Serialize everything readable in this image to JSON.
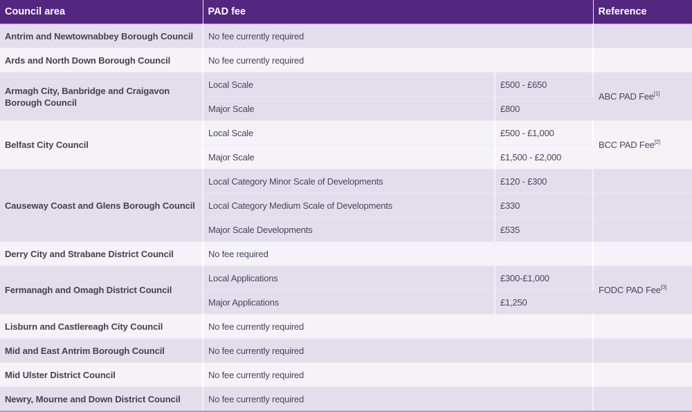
{
  "table": {
    "headers": {
      "council_area": "Council area",
      "pad_fee": "PAD fee",
      "reference": "Reference"
    },
    "rows": [
      {
        "council": "Antrim and Newtownabbey Borough Council",
        "fee_text": "No fee currently required"
      },
      {
        "council": "Ards and North Down Borough Council",
        "fee_text": "No fee currently required"
      },
      {
        "council": "Armagh City, Banbridge and Craigavon Borough Council",
        "fees": [
          {
            "label": "Local Scale",
            "amount": "£500 - £650"
          },
          {
            "label": "Major Scale",
            "amount": "£800"
          }
        ],
        "reference": {
          "text": "ABC PAD Fee",
          "footnote": "[1]"
        }
      },
      {
        "council": "Belfast City Council",
        "fees": [
          {
            "label": "Local Scale",
            "amount": "£500 - £1,000"
          },
          {
            "label": "Major Scale",
            "amount": "£1,500 - £2,000"
          }
        ],
        "reference": {
          "text": "BCC PAD Fee",
          "footnote": "[2]"
        }
      },
      {
        "council": "Causeway Coast and Glens Borough Council",
        "fees": [
          {
            "label": "Local Category Minor Scale of Developments",
            "amount": "£120 - £300"
          },
          {
            "label": "Local Category Medium Scale of Developments",
            "amount": "£330"
          },
          {
            "label": "Major Scale Developments",
            "amount": "£535"
          }
        ]
      },
      {
        "council": "Derry City and Strabane District Council",
        "fee_text": "No fee required"
      },
      {
        "council": "Fermanagh and Omagh District Council",
        "fees": [
          {
            "label": "Local Applications",
            "amount": "£300-£1,000"
          },
          {
            "label": "Major Applications",
            "amount": "£1,250"
          }
        ],
        "reference": {
          "text": "FODC PAD Fee",
          "footnote": "[3]"
        }
      },
      {
        "council": "Lisburn and Castlereagh City Council",
        "fee_text": "No fee currently required"
      },
      {
        "council": "Mid and East Antrim Borough Council",
        "fee_text": "No fee currently required"
      },
      {
        "council": "Mid Ulster District Council",
        "fee_text": "No fee currently required"
      },
      {
        "council": "Newry, Mourne and Down District Council",
        "fee_text": "No fee currently required"
      }
    ]
  },
  "colors": {
    "header_bg": "#53267f",
    "header_text": "#ffffff",
    "row_dark": "#e4deec",
    "row_light": "#f5f3f8",
    "text": "#3d3a4c"
  }
}
